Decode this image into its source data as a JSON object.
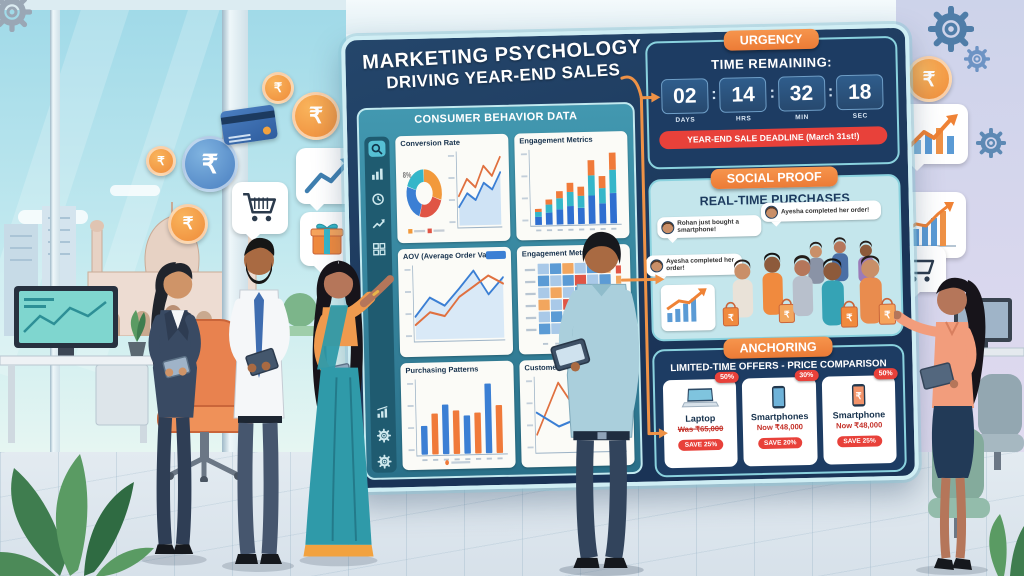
{
  "board": {
    "title_line1": "MARKETING PSYCHOLOGY",
    "title_line2": "DRIVING YEAR-END SALES"
  },
  "consumer_panel": {
    "title": "CONSUMER BEHAVIOR DATA",
    "sidebar_icons": [
      "search",
      "bar-chart",
      "clock",
      "trend-arrow",
      "grid",
      "chart-up",
      "gear",
      "settings-gear"
    ],
    "cards": [
      {
        "title": "Conversion Rate"
      },
      {
        "title": "Engagement Metrics"
      },
      {
        "title": "AOV (Average Order Value)"
      },
      {
        "title": "Engagement Metrics"
      },
      {
        "title": "Purchasing Patterns"
      },
      {
        "title": "Customer Journey"
      }
    ]
  },
  "urgency": {
    "badge": "URGENCY",
    "heading": "TIME REMAINING:",
    "separator": ":",
    "countdown": [
      {
        "value": "02",
        "unit": "DAYS"
      },
      {
        "value": "14",
        "unit": "HRS"
      },
      {
        "value": "32",
        "unit": "MIN"
      },
      {
        "value": "18",
        "unit": "SEC"
      }
    ],
    "deadline": "YEAR-END SALE DEADLINE (March 31st!)"
  },
  "social_proof": {
    "badge": "SOCIAL PROOF",
    "heading": "REAL-TIME PURCHASES",
    "notifications": [
      {
        "text": "Rohan just bought a smartphone!"
      },
      {
        "text": "Ayesha completed her order!"
      },
      {
        "text": "Ayesha completed her order!"
      }
    ]
  },
  "anchoring": {
    "badge": "ANCHORING",
    "heading": "LIMITED-TIME OFFERS - PRICE COMPARISON",
    "products": [
      {
        "name": "Laptop",
        "price_label": "Was ₹65,000",
        "save": "SAVE 25%",
        "discount": "50%"
      },
      {
        "name": "Smartphones",
        "price_label": "Now ₹48,000",
        "save": "SAVE 20%",
        "discount": "30%"
      },
      {
        "name": "Smartphone",
        "price_label": "Now ₹48,000",
        "save": "SAVE 25%",
        "discount": "50%"
      }
    ]
  },
  "glyphs": {
    "rupee": "₹"
  },
  "colors": {
    "board_navy": "#1d3c63",
    "panel_teal": "#3a8fa6",
    "accent_orange": "#ef8c3a",
    "alert_red": "#e8413a",
    "chart_blue": "#3b7fd4",
    "chart_teal": "#35b6c9",
    "chart_orange": "#f07a3a"
  },
  "chart_data": [
    {
      "id": "conversion-donut",
      "type": "pie",
      "title": "Conversion Rate",
      "label": "8%",
      "slices": [
        {
          "value": 30,
          "color": "#f2993b"
        },
        {
          "value": 25,
          "color": "#e05545"
        },
        {
          "value": 25,
          "color": "#3b7fd4"
        },
        {
          "value": 20,
          "color": "#35b6c9"
        }
      ]
    },
    {
      "id": "conversion-trend",
      "type": "line",
      "series": [
        {
          "name": "conversions",
          "color": "#3b7fd4",
          "fill": "#cfe3f5",
          "values": [
            22,
            38,
            30,
            50,
            42,
            62
          ]
        },
        {
          "name": "visitors",
          "color": "#e0703f",
          "values": [
            35,
            55,
            45,
            70,
            58,
            80
          ]
        }
      ]
    },
    {
      "id": "engagement-stack",
      "type": "bar",
      "stacked": true,
      "categories": [
        "1",
        "2",
        "3",
        "4",
        "5",
        "6",
        "7",
        "8"
      ],
      "series": [
        {
          "name": "likes",
          "color": "#2f6fd0",
          "values": [
            8,
            12,
            15,
            18,
            16,
            28,
            20,
            30
          ]
        },
        {
          "name": "shares",
          "color": "#35b6c9",
          "values": [
            5,
            8,
            11,
            14,
            12,
            20,
            15,
            23
          ]
        },
        {
          "name": "comments",
          "color": "#f07a3a",
          "values": [
            3,
            5,
            7,
            9,
            9,
            15,
            12,
            17
          ]
        }
      ]
    },
    {
      "id": "aov-line",
      "type": "line",
      "series": [
        {
          "name": "aov",
          "color": "#3b7fd4",
          "fill": "#d9e9f7",
          "values": [
            22,
            40,
            32,
            48,
            65,
            42,
            58
          ]
        },
        {
          "name": "benchmark",
          "color": "#e0703f",
          "values": [
            14,
            26,
            22,
            40,
            50,
            60,
            52
          ]
        }
      ]
    },
    {
      "id": "engagement-heatmap",
      "type": "heatmap",
      "palette": {
        "1": "#a9c9e8",
        "2": "#5b9bd5",
        "3": "#f2a65e",
        "4": "#e05545"
      },
      "cells": [
        [
          1,
          2,
          3,
          1,
          2,
          3
        ],
        [
          2,
          1,
          2,
          4,
          1,
          2
        ],
        [
          1,
          3,
          1,
          2,
          3,
          1
        ],
        [
          3,
          1,
          4,
          1,
          2,
          2
        ],
        [
          1,
          2,
          1,
          3,
          1,
          4
        ],
        [
          2,
          1,
          3,
          1,
          2,
          1
        ]
      ]
    },
    {
      "id": "purchasing-bars",
      "type": "bar",
      "values": [
        33,
        47,
        57,
        50,
        44,
        47,
        80,
        55
      ],
      "colors": [
        "#3b7fd4",
        "#f07a3a",
        "#3b7fd4",
        "#f07a3a",
        "#3b7fd4",
        "#f07a3a",
        "#3b7fd4",
        "#f07a3a"
      ],
      "legend_dot": "#f07a3a"
    },
    {
      "id": "customer-journey",
      "type": "line",
      "series": [
        {
          "name": "touchpoints",
          "color": "#e0703f",
          "values": [
            15,
            62,
            30,
            38,
            28
          ]
        },
        {
          "name": "retention",
          "color": "#3b7fd4",
          "values": [
            35,
            22,
            30,
            18,
            45
          ]
        }
      ]
    }
  ]
}
